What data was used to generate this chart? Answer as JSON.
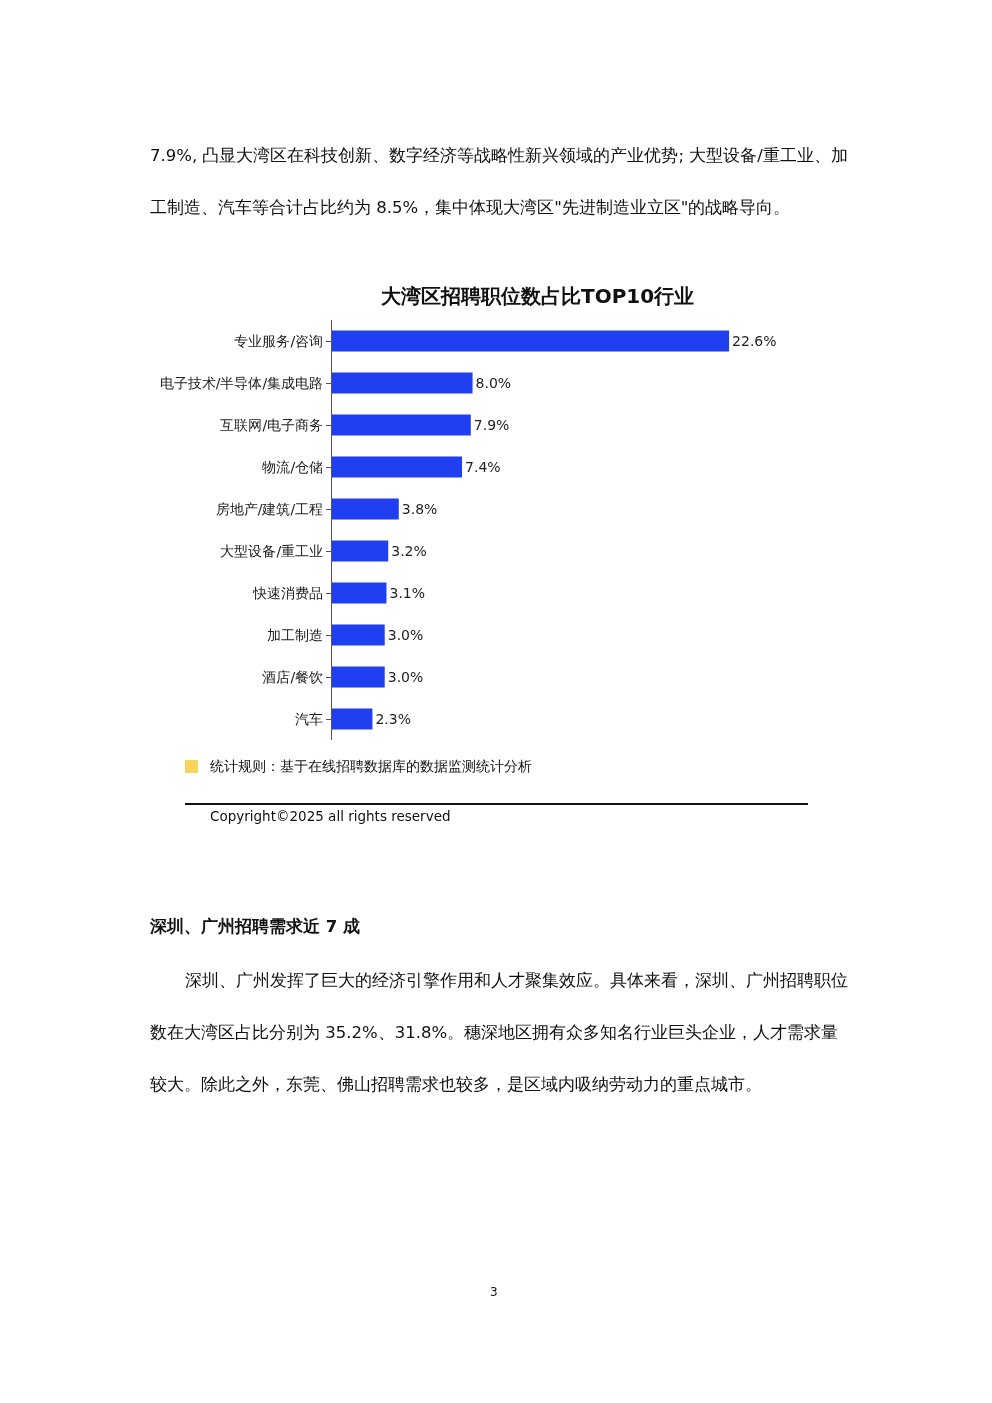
{
  "chart_data": {
    "type": "bar",
    "orientation": "horizontal",
    "title": "大湾区招聘职位数占比TOP10行业",
    "categories": [
      "专业服务/咨询",
      "电子技术/半导体/集成电路",
      "互联网/电子商务",
      "物流/仓储",
      "房地产/建筑/工程",
      "大型设备/重工业",
      "快速消费品",
      "加工制造",
      "酒店/餐饮",
      "汽车"
    ],
    "values": [
      22.6,
      8.0,
      7.9,
      7.4,
      3.8,
      3.2,
      3.1,
      3.0,
      3.0,
      2.3
    ],
    "value_labels": [
      "22.6%",
      "8.0%",
      "7.9%",
      "7.4%",
      "3.8%",
      "3.2%",
      "3.1%",
      "3.0%",
      "3.0%",
      "2.3%"
    ],
    "color": "#1f3ff0",
    "tick_labels": "y",
    "legend": false,
    "annotations": [
      "7.9%, 凸显大湾区在科技创新、数字经济等战略性新兴领域的产业优势; 大型设备/重工业、加工制造、汽车等合计占比约为 8.5%，集中体现大湾区\"先进制造业立区\"的战略导向。",
      "统计规则：基于在线招聘数据库的数据监测统计分析",
      "Copyright©2025 all rights reserved",
      "深圳、广州招聘需求近 7 成",
      "深圳、广州发挥了巨大的经济引擎作用和人才聚集效应。具体来看，深圳、广州招聘职位数在大湾区占比分别为 35.2%、31.8%。穗深地区拥有众多知名行业巨头企业，人才需求量较大。除此之外，东莞、佛山招聘需求也较多，是区域内吸纳劳动力的重点城市。",
      "3"
    ]
  }
}
